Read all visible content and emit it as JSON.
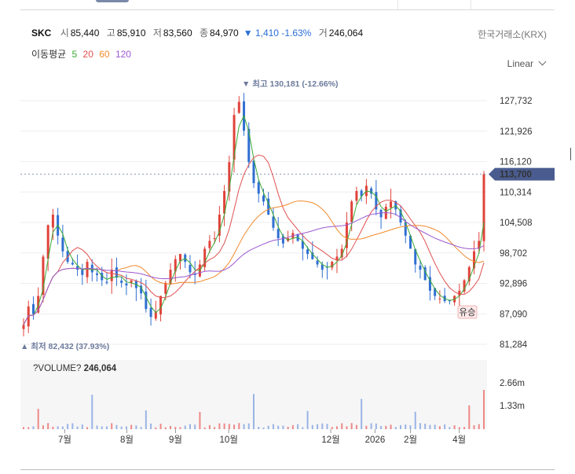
{
  "header": {
    "symbol": "SKC",
    "open_label": "시",
    "open": "85,440",
    "high_label": "고",
    "high": "85,910",
    "low_label": "저",
    "low": "83,560",
    "close_label": "종",
    "close": "84,970",
    "change_arrow": "▼",
    "change": "1,410",
    "change_pct": "-1.63%",
    "volume_label": "거",
    "volume": "246,064",
    "exchange": "한국거래소(KRX)"
  },
  "ma_legend": {
    "label": "이동평균",
    "periods": [
      {
        "text": "5",
        "color": "#3aaa35"
      },
      {
        "text": "20",
        "color": "#e05050"
      },
      {
        "text": "60",
        "color": "#f08a2c"
      },
      {
        "text": "120",
        "color": "#9b59d0"
      }
    ]
  },
  "scale_mode": "Linear",
  "annotations": {
    "high": "▼ 최고 130,181 (-12.66%)",
    "low": "▲ 최저 82,432 (37.93%)",
    "last_price": "113,700",
    "badge": "유승",
    "volume_title": "?VOLUME?",
    "volume_value": "246,064"
  },
  "colors": {
    "up": "#e0433a",
    "down": "#2f6fd2",
    "accent": "#4a5c8f"
  },
  "chart_data": {
    "type": "candlestick",
    "price_axis": {
      "ticks": [
        "127,732",
        "121,926",
        "116,120",
        "110,314",
        "104,508",
        "98,702",
        "92,896",
        "87,090",
        "81,284"
      ],
      "range": [
        81284,
        130181
      ]
    },
    "volume_axis": {
      "ticks": [
        "2.66m",
        "1.33m"
      ]
    },
    "x_ticks": [
      "7월",
      "8월",
      "9월",
      "10월",
      "12월",
      "2026",
      "2월",
      "4월"
    ],
    "last_price": 113700,
    "high": 130181,
    "low": 82432,
    "close_series": [
      85000,
      88500,
      87000,
      90500,
      98000,
      104000,
      106000,
      102000,
      99000,
      97000,
      96500,
      95500,
      94500,
      97000,
      95000,
      94500,
      93500,
      93000,
      95500,
      94000,
      93000,
      92500,
      93500,
      92000,
      91000,
      88000,
      86500,
      87500,
      90500,
      93000,
      95500,
      97500,
      98500,
      97000,
      95000,
      94500,
      96500,
      99500,
      101000,
      101500,
      106000,
      110500,
      116000,
      125000,
      127500,
      122000,
      116000,
      112000,
      110000,
      108500,
      106000,
      103500,
      101500,
      100500,
      101500,
      102500,
      101000,
      99500,
      98500,
      97500,
      96500,
      95500,
      96000,
      97000,
      98000,
      99500,
      104500,
      108500,
      110500,
      109500,
      111500,
      110000,
      107000,
      105500,
      107500,
      108500,
      107000,
      104500,
      102000,
      99500,
      96500,
      95500,
      93500,
      91500,
      90500,
      90000,
      89500,
      89500,
      90500,
      91500,
      93500,
      96000,
      99000,
      101000,
      113700
    ],
    "ma_lines": [
      "MA5",
      "MA20",
      "MA60",
      "MA120"
    ]
  }
}
